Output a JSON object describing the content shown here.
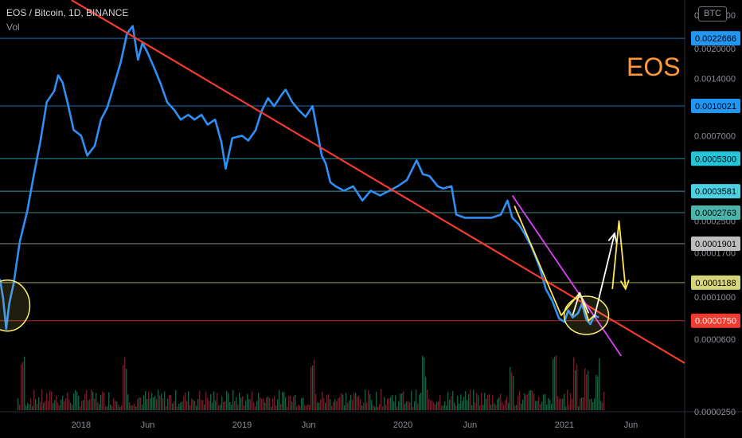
{
  "header": {
    "symbol_line": "EOS / Bitcoin, 1D, BINANCE",
    "indicator": "Vol"
  },
  "badge": "BTC",
  "watermark_text": "EOS",
  "colors": {
    "background": "#000000",
    "price_line": "#2f8ff3",
    "trend_red": "#f23b2e",
    "trend_magenta": "#e040fb",
    "yellow_path": "#ffe84d",
    "white_path": "#ffffff",
    "circle": "#fff176",
    "grid_text": "#8b8e96"
  },
  "chart_data": {
    "type": "line",
    "title": "EOS / Bitcoin, 1D, BINANCE",
    "x_axis": {
      "ticks": [
        "2018",
        "Jun",
        "2019",
        "Jun",
        "2020",
        "Jun",
        "2021",
        "Jun"
      ],
      "range": [
        "2017-07",
        "2021-10"
      ]
    },
    "y_axis": {
      "scale": "log",
      "range": [
        2.5e-05,
        0.0036
      ],
      "ticks": [
        "0.0030000",
        "0.0020000",
        "0.0014000",
        "0.0007000",
        "0.0003500",
        "0.0002500",
        "0.0001700",
        "0.0001000",
        "0.0000600",
        "0.0000250"
      ]
    },
    "series": [
      {
        "values": [
          [
            "2017-07-01",
            0.000124
          ],
          [
            "2017-07-08",
            9.8e-05
          ],
          [
            "2017-07-15",
            6.8e-05
          ],
          [
            "2017-07-22",
            9.2e-05
          ],
          [
            "2017-08-01",
            0.000118
          ],
          [
            "2017-08-15",
            0.000195
          ],
          [
            "2017-09-01",
            0.000282
          ],
          [
            "2017-09-15",
            0.000427
          ],
          [
            "2017-10-01",
            0.00066
          ],
          [
            "2017-10-15",
            0.00105
          ],
          [
            "2017-11-01",
            0.0012
          ],
          [
            "2017-11-10",
            0.00145
          ],
          [
            "2017-11-20",
            0.00133
          ],
          [
            "2017-12-01",
            0.00105
          ],
          [
            "2017-12-15",
            0.00075
          ],
          [
            "2018-01-01",
            0.0007
          ],
          [
            "2018-01-15",
            0.00055
          ],
          [
            "2018-02-01",
            0.00062
          ],
          [
            "2018-02-15",
            0.00085
          ],
          [
            "2018-03-01",
            0.00098
          ],
          [
            "2018-03-15",
            0.00125
          ],
          [
            "2018-04-01",
            0.0017
          ],
          [
            "2018-04-15",
            0.0024
          ],
          [
            "2018-04-28",
            0.00263
          ],
          [
            "2018-05-10",
            0.00175
          ],
          [
            "2018-05-20",
            0.00215
          ],
          [
            "2018-06-01",
            0.0019
          ],
          [
            "2018-06-15",
            0.0016
          ],
          [
            "2018-07-01",
            0.0013
          ],
          [
            "2018-07-15",
            0.00105
          ],
          [
            "2018-08-01",
            0.00095
          ],
          [
            "2018-08-15",
            0.00085
          ],
          [
            "2018-09-01",
            0.0009
          ],
          [
            "2018-09-15",
            0.00085
          ],
          [
            "2018-10-01",
            0.0009
          ],
          [
            "2018-10-15",
            0.0008
          ],
          [
            "2018-11-01",
            0.00085
          ],
          [
            "2018-11-15",
            0.00065
          ],
          [
            "2018-11-25",
            0.00047
          ],
          [
            "2018-12-10",
            0.00068
          ],
          [
            "2019-01-01",
            0.0007
          ],
          [
            "2019-01-15",
            0.00066
          ],
          [
            "2019-02-01",
            0.00075
          ],
          [
            "2019-02-15",
            0.00095
          ],
          [
            "2019-03-01",
            0.0011
          ],
          [
            "2019-03-15",
            0.001
          ],
          [
            "2019-04-01",
            0.00115
          ],
          [
            "2019-04-10",
            0.00122
          ],
          [
            "2019-04-25",
            0.00105
          ],
          [
            "2019-05-10",
            0.00095
          ],
          [
            "2019-05-25",
            0.00088
          ],
          [
            "2019-06-10",
            0.001
          ],
          [
            "2019-06-20",
            0.00075
          ],
          [
            "2019-07-01",
            0.00055
          ],
          [
            "2019-07-10",
            0.0005
          ],
          [
            "2019-07-20",
            0.0004
          ],
          [
            "2019-08-01",
            0.00038
          ],
          [
            "2019-08-20",
            0.00036
          ],
          [
            "2019-09-10",
            0.00038
          ],
          [
            "2019-10-01",
            0.00032
          ],
          [
            "2019-10-20",
            0.00036
          ],
          [
            "2019-11-10",
            0.00034
          ],
          [
            "2019-12-01",
            0.00036
          ],
          [
            "2019-12-20",
            0.00038
          ],
          [
            "2020-01-10",
            0.00041
          ],
          [
            "2020-02-01",
            0.00052
          ],
          [
            "2020-02-15",
            0.00044
          ],
          [
            "2020-03-01",
            0.00043
          ],
          [
            "2020-03-20",
            0.00038
          ],
          [
            "2020-04-01",
            0.00037
          ],
          [
            "2020-04-20",
            0.00038
          ],
          [
            "2020-05-01",
            0.00027
          ],
          [
            "2020-05-20",
            0.00026
          ],
          [
            "2020-06-10",
            0.00026
          ],
          [
            "2020-07-01",
            0.00026
          ],
          [
            "2020-07-20",
            0.00026
          ],
          [
            "2020-08-10",
            0.00027
          ],
          [
            "2020-08-25",
            0.00032
          ],
          [
            "2020-09-05",
            0.00026
          ],
          [
            "2020-09-20",
            0.00024
          ],
          [
            "2020-10-05",
            0.00021
          ],
          [
            "2020-10-20",
            0.00018
          ],
          [
            "2020-11-05",
            0.000145
          ],
          [
            "2020-11-20",
            0.00011
          ],
          [
            "2020-12-05",
            9.5e-05
          ],
          [
            "2020-12-20",
            7.7e-05
          ],
          [
            "2021-01-01",
            7.4e-05
          ],
          [
            "2021-01-10",
            8.5e-05
          ],
          [
            "2021-01-20",
            7.8e-05
          ],
          [
            "2021-02-01",
            8.2e-05
          ],
          [
            "2021-02-10",
            9.2e-05
          ],
          [
            "2021-02-20",
            7.6e-05
          ],
          [
            "2021-03-01",
            7.2e-05
          ],
          [
            "2021-03-10",
            8e-05
          ],
          [
            "2021-03-20",
            7.8e-05
          ]
        ]
      }
    ],
    "horizontal_levels": [
      {
        "value": 0.0022666,
        "label": "0.0022666",
        "style": "line",
        "color": "#2196f3",
        "label_text_color": "#000000"
      },
      {
        "value": 0.0010021,
        "label": "0.0010021",
        "style": "line",
        "color": "#2196f3",
        "label_text_color": "#000000"
      },
      {
        "value": 0.00053,
        "label": "0.0005300",
        "style": "line",
        "color": "#26c6da",
        "label_text_color": "#000000"
      },
      {
        "value": 0.0003581,
        "label": "0.0003581",
        "style": "line",
        "color": "#4dd0e1",
        "label_text_color": "#000000"
      },
      {
        "value": 0.0002763,
        "label": "0.0002763",
        "style": "line",
        "color": "#4db6ac",
        "label_text_color": "#000000"
      },
      {
        "value": 0.0001901,
        "label": "0.0001901",
        "style": "line",
        "color": "#bdbdbd",
        "label_text_color": "#000000"
      },
      {
        "value": 0.0001188,
        "label": "0.0001188",
        "style": "line",
        "color": "#d4d47a",
        "label_text_color": "#000000"
      },
      {
        "value": 7.5e-05,
        "label": "0.0000750",
        "style": "line",
        "color": "#f23b2e",
        "label_text_color": "#ffffff"
      }
    ],
    "trendlines": [
      {
        "name": "red-descending-trendline",
        "color": "#f23b2e",
        "points": [
          [
            "2017-12-10",
            0.0036
          ],
          [
            "2021-10-01",
            4.5e-05
          ]
        ]
      },
      {
        "name": "magenta-wedge-upper",
        "color": "#e040fb",
        "points": [
          [
            "2020-09-05",
            0.00034
          ],
          [
            "2021-05-10",
            4.9e-05
          ]
        ]
      },
      {
        "name": "yellow-path",
        "color": "#ffe84d",
        "points": [
          [
            "2020-09-10",
            0.0003
          ],
          [
            "2020-12-25",
            8e-05
          ],
          [
            "2021-02-05",
            0.000105
          ],
          [
            "2021-02-25",
            7.5e-05
          ],
          [
            "2021-03-10",
            8e-05
          ]
        ]
      },
      {
        "name": "yellow-arrow-projection",
        "color": "#ffe84d",
        "points": [
          [
            "2021-04-20",
            0.00011
          ],
          [
            "2021-05-05",
            0.00025
          ],
          [
            "2021-05-20",
            0.00011
          ]
        ]
      },
      {
        "name": "white-path",
        "color": "#ffffff",
        "points": [
          [
            "2021-01-20",
            8e-05
          ],
          [
            "2021-02-05",
            0.000105
          ],
          [
            "2021-02-25",
            8.2e-05
          ]
        ]
      },
      {
        "name": "white-arrow-projection",
        "color": "#ffffff",
        "points": [
          [
            "2021-03-10",
            7.8e-05
          ],
          [
            "2021-04-25",
            0.000215
          ]
        ]
      }
    ],
    "highlight_circles": [
      {
        "name": "circle-2017-low",
        "center": [
          "2017-07-18",
          9e-05
        ],
        "color": "#fff176"
      },
      {
        "name": "circle-2021-bottom",
        "center": [
          "2021-02-20",
          8e-05
        ],
        "color": "#fff176"
      }
    ],
    "volume": {
      "spike_dates": [
        "2017-08-20",
        "2018-04-10",
        "2019-06-10",
        "2020-02-15",
        "2020-09-01",
        "2020-12-10",
        "2021-01-25",
        "2021-02-20",
        "2021-03-15"
      ]
    },
    "grid": false,
    "legend": "none"
  }
}
